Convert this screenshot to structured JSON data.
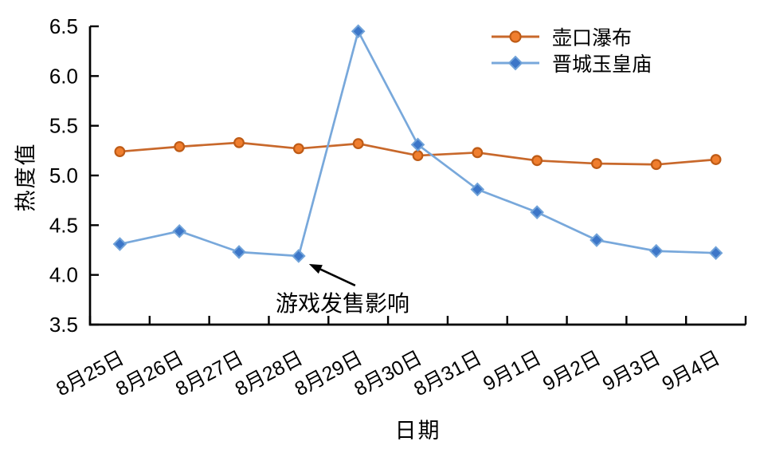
{
  "figure": {
    "background": "#FFFFFF",
    "axis_color": "#000000",
    "text_color": "#000000"
  },
  "chart_data": {
    "type": "line",
    "title": "",
    "xlabel": "日期",
    "ylabel": "热度值",
    "ylim": [
      3.5,
      6.5
    ],
    "yticks": [
      3.5,
      4.0,
      4.5,
      5.0,
      5.5,
      6.0,
      6.5
    ],
    "ytick_labels": [
      "3.5",
      "4.0",
      "4.5",
      "5.0",
      "5.5",
      "6.0",
      "6.5"
    ],
    "categories": [
      "8月25日",
      "8月26日",
      "8月27日",
      "8月28日",
      "8月29日",
      "8月30日",
      "8月31日",
      "9月1日",
      "9月2日",
      "9月3日",
      "9月4日"
    ],
    "series": [
      {
        "name": "壶口瀑布",
        "marker": "circle",
        "line_color": "#C8682B",
        "marker_fill": "#F07E2E",
        "marker_stroke": "#BE5B16",
        "values": [
          5.24,
          5.29,
          5.33,
          5.27,
          5.32,
          5.2,
          5.23,
          5.15,
          5.12,
          5.11,
          5.16
        ]
      },
      {
        "name": "晋城玉皇庙",
        "marker": "diamond",
        "line_color": "#78A8DB",
        "marker_fill": "#3C76C8",
        "marker_stroke": "#71A3D9",
        "values": [
          4.31,
          4.44,
          4.23,
          4.19,
          6.45,
          5.31,
          4.86,
          4.63,
          4.35,
          4.24,
          4.22
        ]
      }
    ],
    "annotation": {
      "text": "游戏发售影响",
      "target_series": "晋城玉皇庙",
      "target_category": "8月28日"
    },
    "legend_position": "top-right",
    "grid": false,
    "tick_direction": "in"
  }
}
